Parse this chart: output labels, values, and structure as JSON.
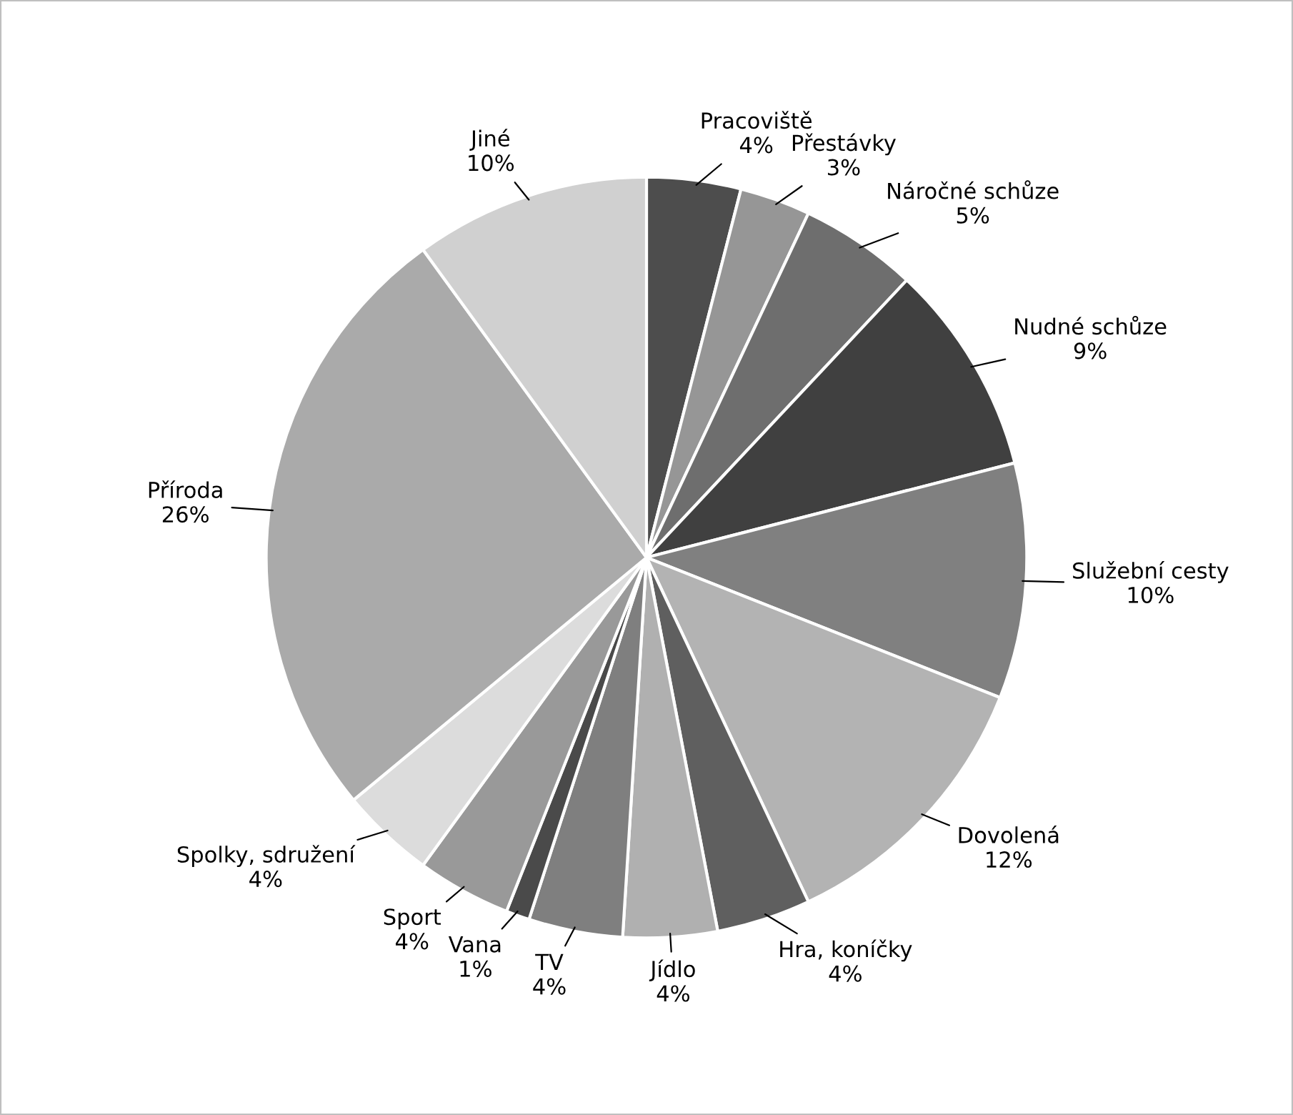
{
  "chart_data": {
    "type": "pie",
    "categories": [
      "Pracoviště",
      "Přestávky",
      "Náročné schůze",
      "Nudné schůze",
      "Služební cesty",
      "Dovolená",
      "Hra, koníčky",
      "Jídlo",
      "TV",
      "Vana",
      "Sport",
      "Spolky, sdružení",
      "Příroda",
      "Jiné"
    ],
    "values": [
      4,
      3,
      5,
      9,
      10,
      12,
      4,
      4,
      4,
      1,
      4,
      4,
      26,
      10
    ],
    "value_labels": [
      "4%",
      "3%",
      "5%",
      "9%",
      "10%",
      "12%",
      "4%",
      "4%",
      "4%",
      "1%",
      "4%",
      "4%",
      "26%",
      "10%"
    ],
    "colors": [
      "#4d4d4d",
      "#969696",
      "#6e6e6e",
      "#404040",
      "#808080",
      "#b3b3b3",
      "#5f5f5f",
      "#b0b0b0",
      "#7f7f7f",
      "#4a4a4a",
      "#999999",
      "#dcdcdc",
      "#aaaaaa",
      "#d0d0d0"
    ],
    "legend": false
  }
}
